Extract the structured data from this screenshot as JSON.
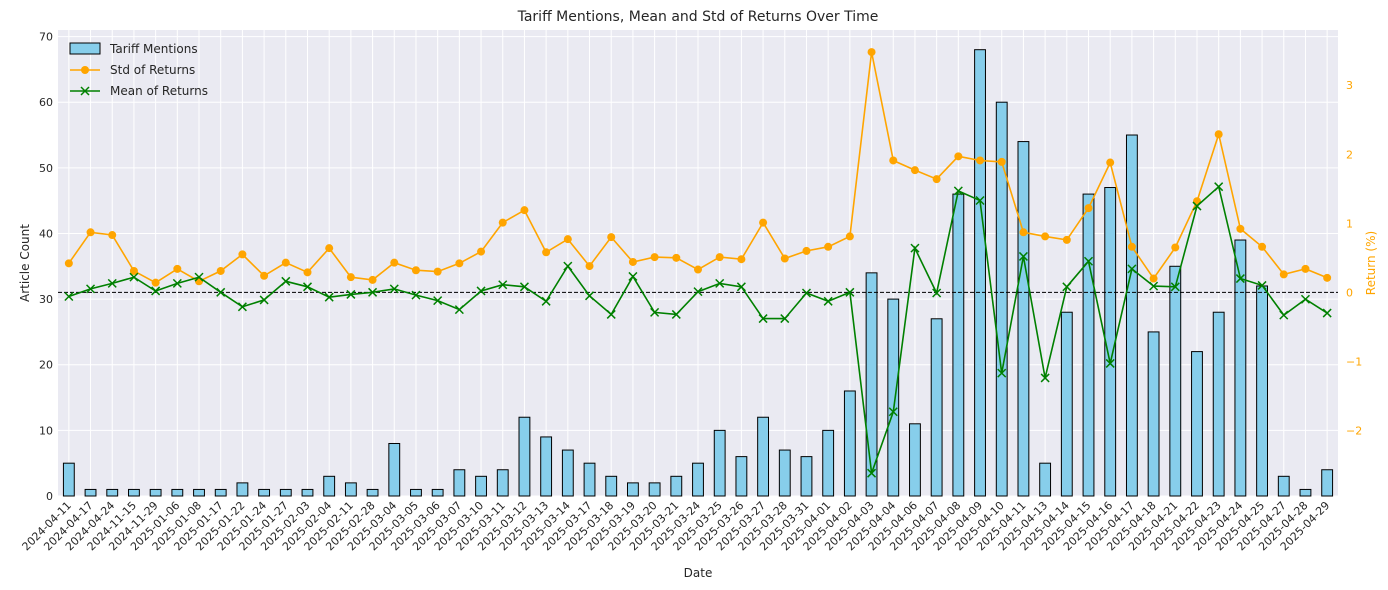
{
  "chart_data": {
    "type": "bar",
    "title": "Tariff Mentions, Mean and Std of Returns Over Time",
    "xlabel": "Date",
    "ylabel": "Article Count",
    "y2label": "Return (%)",
    "ylim": [
      0,
      71
    ],
    "y2lim": [
      -2.95,
      3.8
    ],
    "yticks": [
      0,
      10,
      20,
      30,
      40,
      50,
      60,
      70
    ],
    "y2ticks": [
      -2,
      -1,
      0,
      1,
      2,
      3
    ],
    "grid": true,
    "legend_position": "top-left",
    "reference_line": 0,
    "categories": [
      "2024-04-11",
      "2024-04-17",
      "2024-04-24",
      "2024-11-15",
      "2024-11-29",
      "2025-01-06",
      "2025-01-08",
      "2025-01-17",
      "2025-01-22",
      "2025-01-24",
      "2025-01-27",
      "2025-02-03",
      "2025-02-04",
      "2025-02-11",
      "2025-02-28",
      "2025-03-04",
      "2025-03-05",
      "2025-03-06",
      "2025-03-07",
      "2025-03-10",
      "2025-03-11",
      "2025-03-12",
      "2025-03-13",
      "2025-03-14",
      "2025-03-17",
      "2025-03-18",
      "2025-03-19",
      "2025-03-20",
      "2025-03-21",
      "2025-03-24",
      "2025-03-25",
      "2025-03-26",
      "2025-03-27",
      "2025-03-28",
      "2025-03-31",
      "2025-04-01",
      "2025-04-02",
      "2025-04-03",
      "2025-04-04",
      "2025-04-06",
      "2025-04-07",
      "2025-04-08",
      "2025-04-09",
      "2025-04-10",
      "2025-04-11",
      "2025-04-13",
      "2025-04-14",
      "2025-04-15",
      "2025-04-16",
      "2025-04-17",
      "2025-04-18",
      "2025-04-21",
      "2025-04-22",
      "2025-04-23",
      "2025-04-24",
      "2025-04-25",
      "2025-04-27",
      "2025-04-28",
      "2025-04-29"
    ],
    "series": [
      {
        "name": "Tariff Mentions",
        "kind": "bar",
        "axis": "left",
        "color": "#87CEEB",
        "values": [
          5,
          1,
          1,
          1,
          1,
          1,
          1,
          1,
          2,
          1,
          1,
          1,
          3,
          2,
          1,
          8,
          1,
          1,
          4,
          3,
          4,
          12,
          9,
          7,
          5,
          3,
          2,
          2,
          3,
          5,
          10,
          6,
          12,
          7,
          6,
          10,
          16,
          34,
          30,
          11,
          27,
          46,
          68,
          60,
          54,
          5,
          28,
          46,
          47,
          55,
          25,
          35,
          22,
          28,
          39,
          32,
          3,
          1,
          4
        ]
      },
      {
        "name": "Std of Returns",
        "kind": "line",
        "axis": "right",
        "color": "#FFA500",
        "marker": "o",
        "values": [
          0.42,
          0.87,
          0.83,
          0.31,
          0.14,
          0.34,
          0.16,
          0.31,
          0.55,
          0.24,
          0.43,
          0.29,
          0.64,
          0.22,
          0.18,
          0.43,
          0.32,
          0.3,
          0.42,
          0.59,
          1.01,
          1.19,
          0.58,
          0.77,
          0.38,
          0.8,
          0.44,
          0.51,
          0.5,
          0.33,
          0.51,
          0.48,
          1.01,
          0.49,
          0.6,
          0.66,
          0.81,
          3.48,
          1.91,
          1.77,
          1.64,
          1.97,
          1.91,
          1.89,
          0.87,
          0.81,
          0.76,
          1.22,
          1.88,
          0.66,
          0.2,
          0.65,
          1.32,
          2.29,
          0.92,
          0.66,
          0.26,
          0.34,
          0.21
        ]
      },
      {
        "name": "Mean of Returns",
        "kind": "line",
        "axis": "right",
        "color": "#008000",
        "marker": "x",
        "values": [
          -0.06,
          0.05,
          0.13,
          0.22,
          0.02,
          0.13,
          0.22,
          0.0,
          -0.21,
          -0.11,
          0.16,
          0.08,
          -0.07,
          -0.03,
          0.0,
          0.05,
          -0.04,
          -0.12,
          -0.25,
          0.02,
          0.11,
          0.08,
          -0.13,
          0.38,
          -0.05,
          -0.32,
          0.23,
          -0.29,
          -0.32,
          0.01,
          0.13,
          0.08,
          -0.38,
          -0.38,
          -0.01,
          -0.13,
          0.0,
          -2.62,
          -1.73,
          0.64,
          -0.01,
          1.47,
          1.33,
          -1.17,
          0.52,
          -1.24,
          0.08,
          0.45,
          -1.03,
          0.34,
          0.09,
          0.08,
          1.25,
          1.53,
          0.2,
          0.1,
          -0.33,
          -0.1,
          -0.3
        ]
      }
    ]
  }
}
